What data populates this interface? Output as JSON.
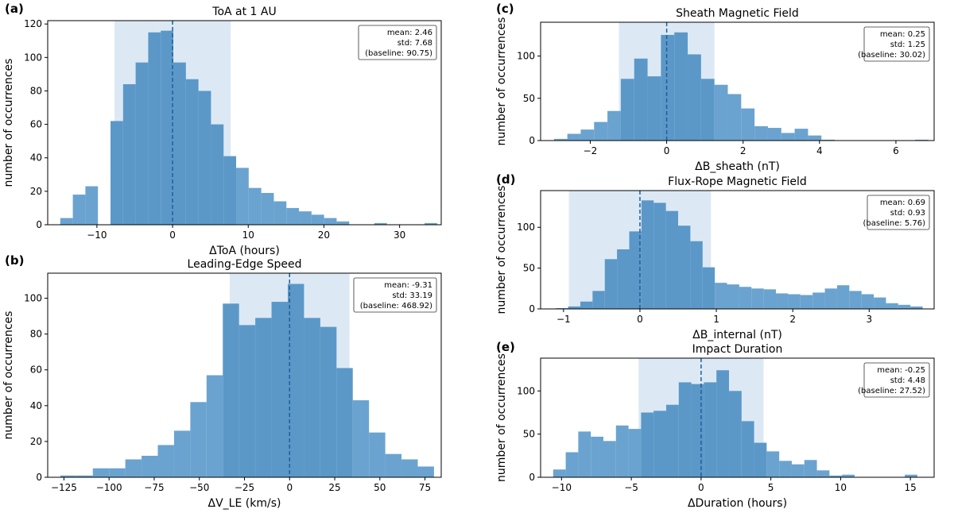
{
  "chart_data": [
    {
      "type": "bar",
      "panel_label": "(a)",
      "title": "ToA at 1 AU",
      "xlabel": "ΔToA (hours)",
      "ylabel": "number of occurrences",
      "xlim": [
        -16.5,
        35.5
      ],
      "ylim": [
        0,
        122
      ],
      "xticks": [
        -10,
        0,
        10,
        20,
        30
      ],
      "yticks": [
        0,
        20,
        40,
        60,
        80,
        100,
        120
      ],
      "bin_edges": [
        -14.84,
        -13.18,
        -11.52,
        -9.86,
        -8.2,
        -6.54,
        -4.88,
        -3.22,
        -1.56,
        0.1,
        1.76,
        3.42,
        5.08,
        6.74,
        8.4,
        10.06,
        11.72,
        13.38,
        15.04,
        16.7,
        18.36,
        20.02,
        21.68,
        23.34,
        25.0,
        26.66,
        28.32,
        29.98,
        31.64,
        33.3,
        34.96
      ],
      "counts": [
        4,
        18,
        23,
        0,
        62,
        84,
        97,
        115,
        116,
        97,
        87,
        80,
        60,
        41,
        34,
        22,
        19,
        14,
        10,
        8,
        6,
        4,
        2,
        0,
        0,
        1,
        0,
        0,
        0,
        1
      ],
      "mean_line": 0,
      "shaded_band": [
        -7.68,
        7.68
      ],
      "annotation": {
        "mean": "mean: 2.46",
        "std": "std: 7.68",
        "baseline": "(baseline: 90.75)"
      }
    },
    {
      "type": "bar",
      "panel_label": "(b)",
      "title": "Leading-Edge Speed",
      "xlabel": "ΔV_LE (km/s)",
      "ylabel": "number of occurrences",
      "xlim": [
        -134,
        84
      ],
      "ylim": [
        0,
        114
      ],
      "xticks": [
        -125,
        -100,
        -75,
        -50,
        -25,
        0,
        25,
        50,
        75
      ],
      "yticks": [
        0,
        20,
        40,
        60,
        80,
        100
      ],
      "bin_edges": [
        -127,
        -118,
        -109,
        -100,
        -91,
        -82,
        -73,
        -64,
        -55,
        -46,
        -37,
        -28,
        -19,
        -10,
        -1,
        8,
        17,
        26,
        35,
        44,
        53,
        62,
        71,
        80
      ],
      "counts": [
        1,
        1,
        5,
        5,
        10,
        12,
        18,
        26,
        42,
        57,
        97,
        85,
        89,
        98,
        108,
        89,
        84,
        61,
        43,
        25,
        13,
        10,
        6
      ],
      "mean_line": 0,
      "shaded_band": [
        -33.19,
        33.19
      ],
      "annotation": {
        "mean": "mean: -9.31",
        "std": "std: 33.19",
        "baseline": "(baseline: 468.92)"
      }
    },
    {
      "type": "bar",
      "panel_label": "(c)",
      "title": "Sheath Magnetic Field",
      "xlabel": "ΔB_sheath (nT)",
      "ylabel": "number of occurrences",
      "xlim": [
        -3.3,
        7.0
      ],
      "ylim": [
        0,
        140
      ],
      "xticks": [
        -2,
        0,
        2,
        4,
        6
      ],
      "yticks": [
        0,
        50,
        100
      ],
      "bin_edges": [
        -2.95,
        -2.6,
        -2.25,
        -1.9,
        -1.55,
        -1.2,
        -0.85,
        -0.5,
        -0.15,
        0.2,
        0.55,
        0.9,
        1.25,
        1.6,
        1.95,
        2.3,
        2.65,
        3.0,
        3.35,
        3.7,
        4.05,
        4.4,
        4.75,
        5.1,
        5.45,
        5.8,
        6.15,
        6.5,
        6.85
      ],
      "counts": [
        2,
        8,
        13,
        22,
        35,
        73,
        97,
        76,
        125,
        128,
        102,
        73,
        66,
        55,
        38,
        17,
        15,
        9,
        14,
        6,
        1,
        0,
        0,
        0,
        0,
        0,
        0,
        1
      ],
      "mean_line": 0,
      "shaded_band": [
        -1.25,
        1.25
      ],
      "annotation": {
        "mean": "mean: 0.25",
        "std": "std: 1.25",
        "baseline": "(baseline: 30.02)"
      }
    },
    {
      "type": "bar",
      "panel_label": "(d)",
      "title": "Flux-Rope Magnetic Field",
      "xlabel": "ΔB_internal (nT)",
      "ylabel": "number of occurrences",
      "xlim": [
        -1.3,
        3.85
      ],
      "ylim": [
        0,
        145
      ],
      "xticks": [
        -1,
        0,
        1,
        2,
        3
      ],
      "yticks": [
        0,
        50,
        100
      ],
      "bin_edges": [
        -1.1,
        -0.94,
        -0.78,
        -0.62,
        -0.46,
        -0.3,
        -0.14,
        0.02,
        0.18,
        0.34,
        0.5,
        0.66,
        0.82,
        0.98,
        1.14,
        1.3,
        1.46,
        1.62,
        1.78,
        1.94,
        2.1,
        2.26,
        2.42,
        2.58,
        2.74,
        2.9,
        3.06,
        3.22,
        3.38,
        3.54,
        3.7
      ],
      "counts": [
        1,
        3,
        9,
        22,
        61,
        73,
        95,
        133,
        130,
        120,
        102,
        83,
        51,
        32,
        30,
        27,
        25,
        24,
        19,
        18,
        17,
        20,
        25,
        29,
        22,
        18,
        14,
        7,
        5,
        3
      ],
      "mean_line": 0,
      "shaded_band": [
        -0.93,
        0.93
      ],
      "annotation": {
        "mean": "mean: 0.69",
        "std": "std: 0.93",
        "baseline": "(baseline: 5.76)"
      }
    },
    {
      "type": "bar",
      "panel_label": "(e)",
      "title": "Impact Duration",
      "xlabel": "ΔDuration (hours)",
      "ylabel": "number of occurrences",
      "xlim": [
        -11.5,
        16.7
      ],
      "ylim": [
        0,
        138
      ],
      "xticks": [
        -10,
        -5,
        0,
        5,
        10,
        15
      ],
      "yticks": [
        0,
        50,
        100
      ],
      "bin_edges": [
        -10.6,
        -9.7,
        -8.8,
        -7.9,
        -7.0,
        -6.1,
        -5.2,
        -4.3,
        -3.4,
        -2.5,
        -1.6,
        -0.7,
        0.2,
        1.1,
        2.0,
        2.9,
        3.8,
        4.7,
        5.6,
        6.5,
        7.4,
        8.3,
        9.2,
        10.1,
        11.0,
        11.9,
        12.8,
        13.7,
        14.6,
        15.5,
        16.4
      ],
      "counts": [
        9,
        29,
        53,
        47,
        42,
        60,
        56,
        75,
        77,
        84,
        110,
        108,
        110,
        124,
        100,
        65,
        40,
        30,
        19,
        15,
        20,
        8,
        2,
        3,
        0,
        0,
        0,
        0,
        3,
        0
      ],
      "mean_line": 0,
      "shaded_band": [
        -4.48,
        4.48
      ],
      "annotation": {
        "mean": "mean: -0.25",
        "std": "std: 4.48",
        "baseline": "(baseline: 27.52)"
      }
    }
  ],
  "colors": {
    "bar": "#6aa3cf",
    "bar_in_band": "#5b98c8",
    "band": "#dce9f4",
    "mean_line": "#1f5f9c"
  }
}
